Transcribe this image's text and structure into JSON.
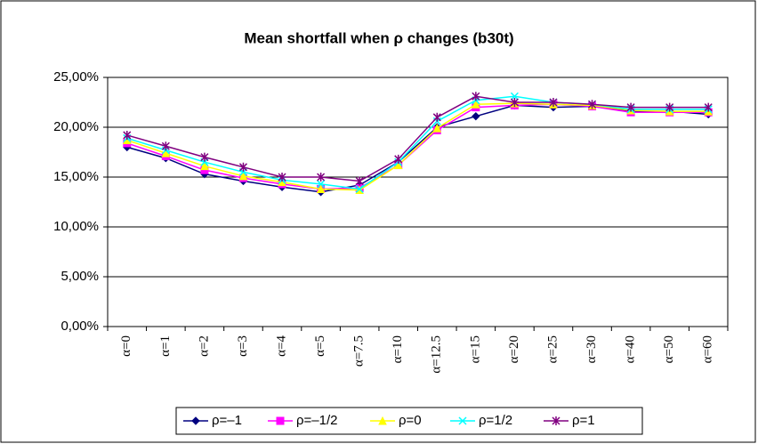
{
  "chart_data": {
    "type": "line",
    "title": "Mean shortfall when ρ changes (b30t)",
    "categories": [
      "α=0",
      "α=1",
      "α=2",
      "α=3",
      "α=4",
      "α=5",
      "α=7.5",
      "α=10",
      "α=12.5",
      "α=15",
      "α=20",
      "α=25",
      "α=30",
      "α=40",
      "α=50",
      "α=60"
    ],
    "series": [
      {
        "name": "ρ=–1",
        "color": "#000080",
        "marker": "diamond",
        "values": [
          18.0,
          16.9,
          15.3,
          14.6,
          14.0,
          13.5,
          14.2,
          16.5,
          20.0,
          21.1,
          22.2,
          22.0,
          22.1,
          21.6,
          21.6,
          21.3
        ]
      },
      {
        "name": "ρ=–1/2",
        "color": "#ff00ff",
        "marker": "square",
        "values": [
          18.4,
          17.1,
          15.7,
          14.9,
          14.3,
          13.8,
          13.9,
          16.2,
          19.7,
          22.0,
          22.2,
          22.3,
          22.1,
          21.5,
          21.5,
          21.5
        ]
      },
      {
        "name": "ρ=0",
        "color": "#ffff00",
        "marker": "triangle",
        "values": [
          18.7,
          17.4,
          16.1,
          15.1,
          14.5,
          13.8,
          13.7,
          16.2,
          19.9,
          22.3,
          22.4,
          22.3,
          22.2,
          21.7,
          21.6,
          21.6
        ]
      },
      {
        "name": "ρ=1/2",
        "color": "#00ffff",
        "marker": "x",
        "values": [
          18.9,
          17.7,
          16.5,
          15.5,
          14.7,
          14.3,
          13.8,
          16.5,
          20.6,
          22.7,
          23.1,
          22.5,
          22.3,
          21.8,
          21.8,
          21.8
        ]
      },
      {
        "name": "ρ=1",
        "color": "#800080",
        "marker": "star",
        "values": [
          19.2,
          18.1,
          17.0,
          16.0,
          15.0,
          15.0,
          14.6,
          16.8,
          21.0,
          23.1,
          22.5,
          22.5,
          22.3,
          22.0,
          22.0,
          22.0
        ]
      }
    ],
    "ylim": [
      0,
      25
    ],
    "yticks": [
      {
        "value": 0,
        "label": "0,00%"
      },
      {
        "value": 5,
        "label": "5,00%"
      },
      {
        "value": 10,
        "label": "10,00%"
      },
      {
        "value": 15,
        "label": "15,00%"
      },
      {
        "value": 20,
        "label": "20,00%"
      },
      {
        "value": 25,
        "label": "25,00%"
      }
    ],
    "grid": true,
    "legend": "bottom"
  }
}
